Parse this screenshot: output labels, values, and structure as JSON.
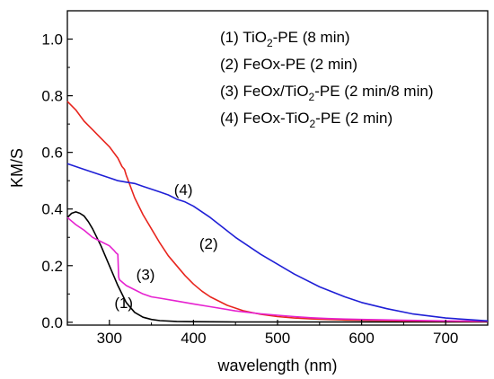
{
  "chart_data": {
    "type": "line",
    "xlabel": "wavelength (nm)",
    "ylabel": "KM/S",
    "xlim": [
      250,
      750
    ],
    "ylim": [
      -0.01,
      1.1
    ],
    "x_ticks": [
      300,
      400,
      500,
      600,
      700
    ],
    "y_ticks": [
      0.0,
      0.2,
      0.4,
      0.6,
      0.8,
      1.0
    ],
    "x_tick_labels": [
      "300",
      "400",
      "500",
      "600",
      "700"
    ],
    "y_tick_labels": [
      "0.0",
      "0.2",
      "0.4",
      "0.6",
      "0.8",
      "1.0"
    ],
    "grid": false,
    "legend_position": "top-right",
    "legend": [
      {
        "pre": "(1) TiO",
        "sub": "2",
        "post": "-PE (8 min)"
      },
      {
        "pre": "(2) FeOx-PE (2 min)",
        "sub": "",
        "post": ""
      },
      {
        "pre": "(3) FeOx/TiO",
        "sub": "2",
        "post": "-PE (2 min/8 min)"
      },
      {
        "pre": "(4) FeOx-TiO",
        "sub": "2",
        "post": "-PE (2 min)"
      }
    ],
    "series": [
      {
        "label": "(1)",
        "color": "#000000",
        "label_x": 317,
        "label_y": 0.05,
        "x": [
          250,
          255,
          260,
          265,
          270,
          275,
          280,
          290,
          300,
          310,
          320,
          330,
          340,
          350,
          360,
          380,
          400,
          450,
          500,
          550,
          600,
          700,
          750
        ],
        "y": [
          0.37,
          0.385,
          0.39,
          0.385,
          0.375,
          0.355,
          0.33,
          0.27,
          0.2,
          0.13,
          0.07,
          0.035,
          0.018,
          0.01,
          0.006,
          0.003,
          0.002,
          0.001,
          0.001,
          0.001,
          0.001,
          0.001,
          0.001
        ]
      },
      {
        "label": "(2)",
        "color": "#e8251e",
        "label_x": 418,
        "label_y": 0.26,
        "x": [
          250,
          260,
          270,
          280,
          290,
          300,
          310,
          315,
          318,
          320,
          325,
          330,
          340,
          350,
          360,
          370,
          380,
          390,
          400,
          410,
          420,
          440,
          460,
          480,
          500,
          520,
          540,
          560,
          580,
          600,
          650,
          700,
          750
        ],
        "y": [
          0.78,
          0.75,
          0.71,
          0.68,
          0.65,
          0.62,
          0.58,
          0.55,
          0.54,
          0.52,
          0.48,
          0.44,
          0.38,
          0.33,
          0.28,
          0.235,
          0.2,
          0.165,
          0.135,
          0.11,
          0.09,
          0.06,
          0.04,
          0.028,
          0.02,
          0.015,
          0.012,
          0.01,
          0.008,
          0.007,
          0.005,
          0.004,
          0.003
        ]
      },
      {
        "label": "(3)",
        "color": "#e622d0",
        "label_x": 343,
        "label_y": 0.15,
        "x": [
          250,
          260,
          270,
          280,
          290,
          300,
          305,
          308,
          310,
          311,
          312,
          320,
          330,
          340,
          350,
          360,
          380,
          400,
          420,
          450,
          480,
          500,
          520,
          540,
          560,
          600,
          650,
          700,
          750
        ],
        "y": [
          0.37,
          0.345,
          0.325,
          0.3,
          0.285,
          0.27,
          0.255,
          0.245,
          0.24,
          0.16,
          0.15,
          0.13,
          0.115,
          0.1,
          0.09,
          0.085,
          0.075,
          0.065,
          0.055,
          0.04,
          0.03,
          0.025,
          0.02,
          0.016,
          0.013,
          0.01,
          0.007,
          0.005,
          0.004
        ]
      },
      {
        "label": "(4)",
        "color": "#1f1fd6",
        "label_x": 388,
        "label_y": 0.45,
        "x": [
          250,
          270,
          290,
          300,
          310,
          320,
          330,
          340,
          350,
          360,
          370,
          380,
          390,
          400,
          420,
          450,
          480,
          500,
          520,
          550,
          580,
          600,
          630,
          660,
          700,
          750
        ],
        "y": [
          0.56,
          0.54,
          0.52,
          0.51,
          0.5,
          0.495,
          0.49,
          0.48,
          0.47,
          0.46,
          0.45,
          0.435,
          0.425,
          0.41,
          0.37,
          0.3,
          0.24,
          0.205,
          0.17,
          0.125,
          0.09,
          0.07,
          0.048,
          0.03,
          0.015,
          0.005
        ]
      }
    ]
  }
}
